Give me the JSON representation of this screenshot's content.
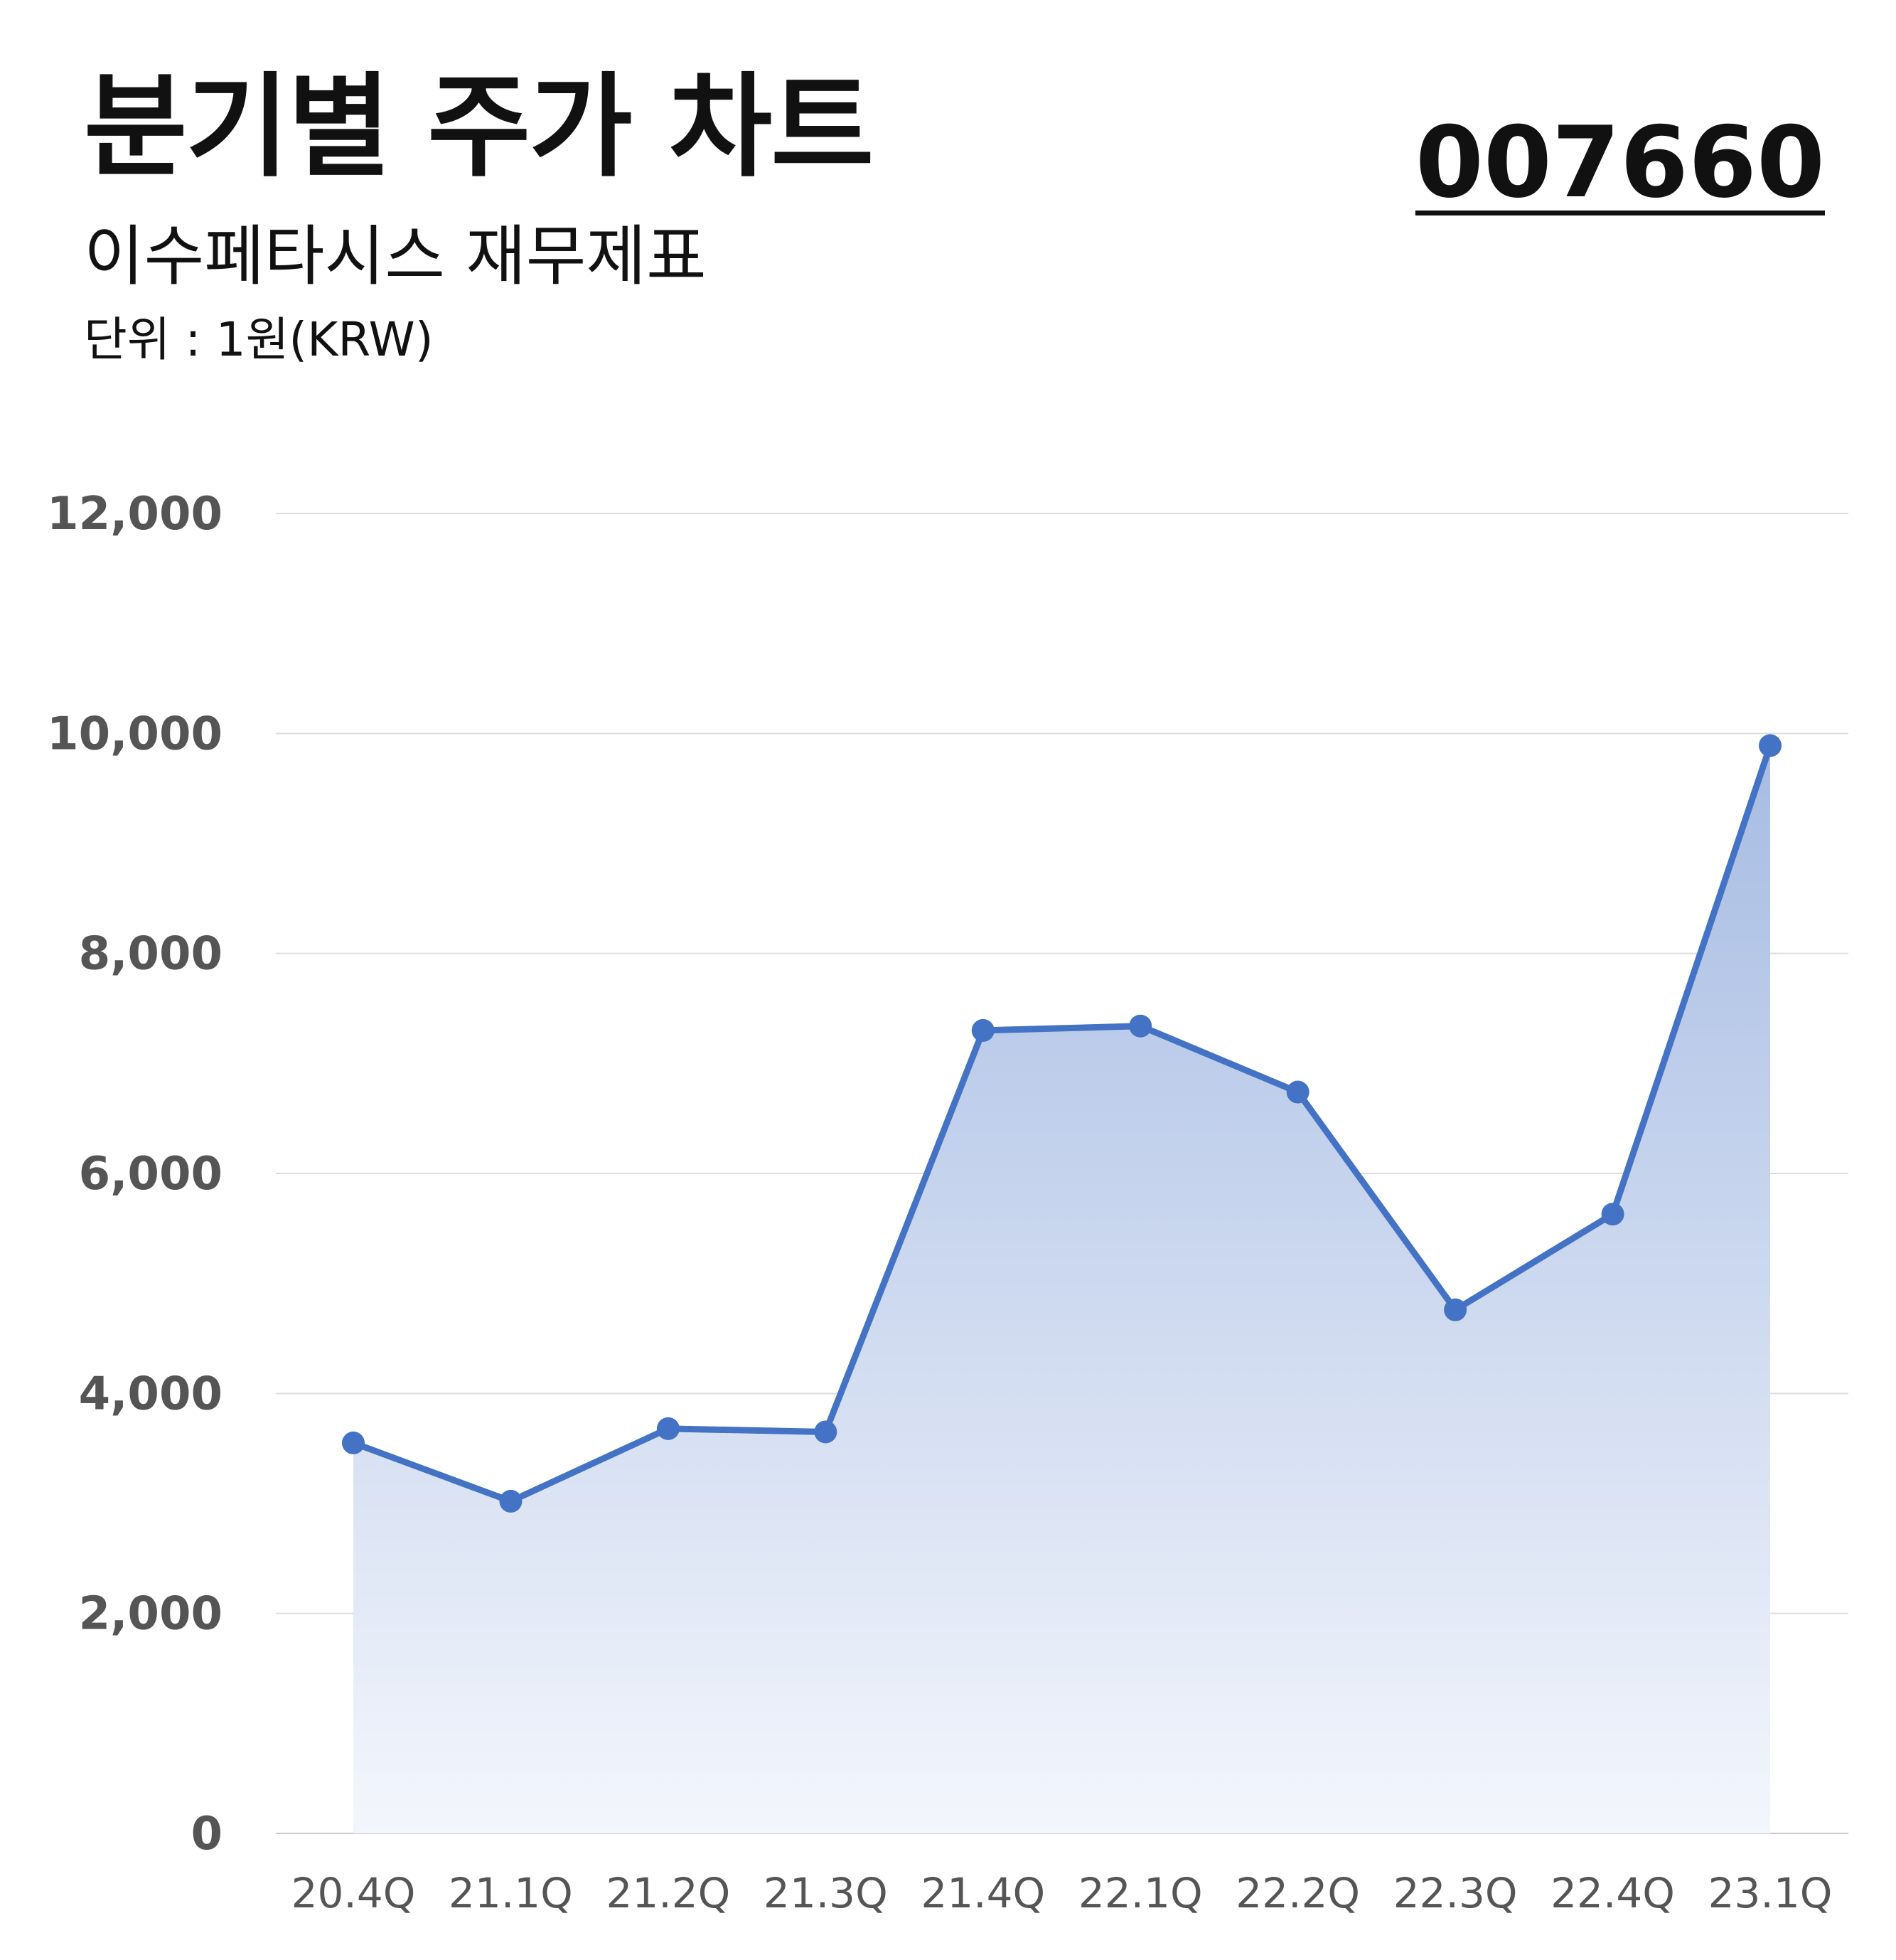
{
  "header": {
    "title": "분기별 주가 차트",
    "code": "007660",
    "subtitle": "이수페타시스 재무제표",
    "unit": "단위 : 1원(KRW)"
  },
  "colors": {
    "line": "#4472C4",
    "fill_top": "#A7BCE3",
    "fill_bottom": "#F3F6FC",
    "grid": "#DDDDDD",
    "tick_text": "#555555"
  },
  "chart_data": {
    "type": "area",
    "categories": [
      "20.4Q",
      "21.1Q",
      "21.2Q",
      "21.3Q",
      "21.4Q",
      "22.1Q",
      "22.2Q",
      "22.3Q",
      "22.4Q",
      "23.1Q"
    ],
    "series": [
      {
        "values": [
          3550,
          3020,
          3680,
          3650,
          7300,
          7340,
          6740,
          4760,
          5630,
          9890
        ]
      }
    ],
    "y_ticks": [
      "0",
      "2,000",
      "4,000",
      "6,000",
      "8,000",
      "10,000",
      "12,000"
    ],
    "ylim": [
      0,
      12000
    ],
    "grid": true,
    "markers": true
  }
}
